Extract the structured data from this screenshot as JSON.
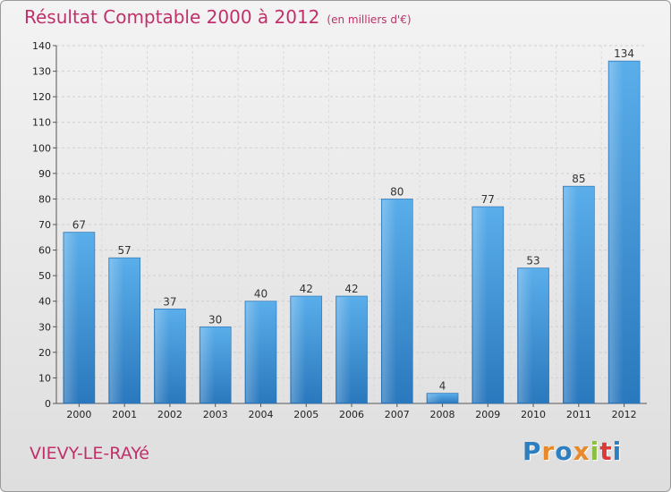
{
  "chart_data": {
    "type": "bar",
    "title": "Résultat Comptable 2000 à 2012",
    "subtitle": "(en milliers d'€)",
    "categories": [
      "2000",
      "2001",
      "2002",
      "2003",
      "2004",
      "2005",
      "2006",
      "2007",
      "2008",
      "2009",
      "2010",
      "2011",
      "2012"
    ],
    "values": [
      67,
      57,
      37,
      30,
      40,
      42,
      42,
      80,
      4,
      77,
      53,
      85,
      134
    ],
    "ylim": [
      0,
      140
    ],
    "yticks": [
      0,
      10,
      20,
      30,
      40,
      50,
      60,
      70,
      80,
      90,
      100,
      110,
      120,
      130,
      140
    ],
    "xlabel": "",
    "ylabel": "",
    "grid": true,
    "bar_color": "#3a8fd6"
  },
  "footer": {
    "commune": "VIEVY-LE-RAYé",
    "brand_letters": [
      {
        "char": "P",
        "color": "#2d7fc1"
      },
      {
        "char": "r",
        "color": "#e8892b"
      },
      {
        "char": "o",
        "color": "#2d7fc1"
      },
      {
        "char": "x",
        "color": "#e8892b"
      },
      {
        "char": "i",
        "color": "#8cbf3f"
      },
      {
        "char": "t",
        "color": "#d93a3a"
      },
      {
        "char": "i",
        "color": "#2d7fc1"
      }
    ]
  }
}
